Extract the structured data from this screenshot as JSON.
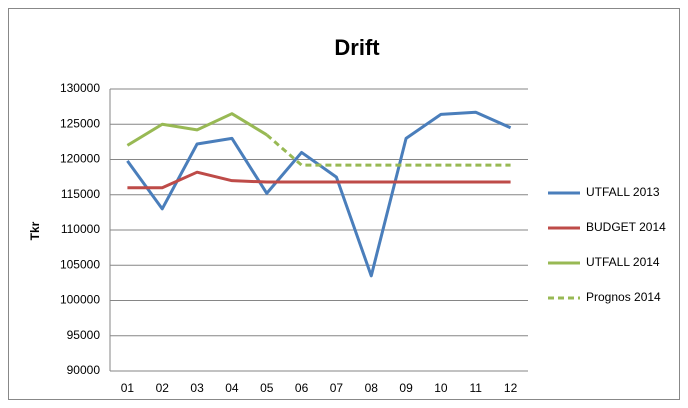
{
  "chart_data": {
    "type": "line",
    "title": "Drift",
    "y_label": "Tkr",
    "categories": [
      "01",
      "02",
      "03",
      "04",
      "05",
      "06",
      "07",
      "08",
      "09",
      "10",
      "11",
      "12"
    ],
    "series": [
      {
        "name": "UTFALL 2013",
        "color": "#4a7ebb",
        "values": [
          119800,
          113000,
          122200,
          123000,
          115200,
          121000,
          117500,
          103500,
          123000,
          126400,
          126700,
          124500
        ]
      },
      {
        "name": "BUDGET 2014",
        "color": "#be4b48",
        "values": [
          116000,
          116000,
          118200,
          117000,
          116800,
          116800,
          116800,
          116800,
          116800,
          116800,
          116800,
          116800
        ]
      },
      {
        "name": "UTFALL 2014",
        "color": "#98b954",
        "values": [
          122000,
          125000,
          124200,
          126500,
          123500,
          null,
          null,
          null,
          null,
          null,
          null,
          null
        ]
      },
      {
        "name": "Prognos 2014",
        "color": "#98b954",
        "dashed": true,
        "values": [
          null,
          null,
          null,
          null,
          123500,
          119200,
          119200,
          119200,
          119200,
          119200,
          119200,
          119200
        ]
      }
    ],
    "ylim": [
      90000,
      130000
    ],
    "yticks": [
      90000,
      95000,
      100000,
      105000,
      110000,
      115000,
      120000,
      125000,
      130000
    ],
    "grid": true,
    "legend": "right"
  }
}
